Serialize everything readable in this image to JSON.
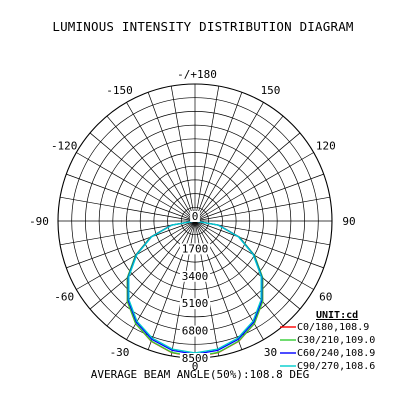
{
  "chart_data": {
    "type": "polar",
    "title": "LUMINOUS INTENSITY DISTRIBUTION DIAGRAM",
    "unit_label": "UNIT:cd",
    "footer": "AVERAGE BEAM ANGLE(50%):108.8 DEG",
    "grid": true,
    "angle_step_deg": 10,
    "r_max": 8500,
    "ring_values": [
      1700,
      3400,
      5100,
      6800,
      8500
    ],
    "ring_labels": [
      "0",
      "1700",
      "3400",
      "5100",
      "6800",
      "8500"
    ],
    "angle_labels": [
      {
        "angle": 180,
        "text": "-/+180"
      },
      {
        "angle": 150,
        "text": "150"
      },
      {
        "angle": -150,
        "text": "-150"
      },
      {
        "angle": 120,
        "text": "120"
      },
      {
        "angle": -120,
        "text": "-120"
      },
      {
        "angle": 90,
        "text": "90"
      },
      {
        "angle": -90,
        "text": "-90"
      },
      {
        "angle": 60,
        "text": "60"
      },
      {
        "angle": -60,
        "text": "-60"
      },
      {
        "angle": 30,
        "text": "30"
      },
      {
        "angle": -30,
        "text": "-30"
      },
      {
        "angle": 0,
        "text": "0"
      }
    ],
    "legend_placement": "bottom-right",
    "series": [
      {
        "name": "C0/180,108.9",
        "color": "#ff0000",
        "angles": [
          -90,
          -80,
          -70,
          -60,
          -50,
          -40,
          -30,
          -20,
          -10,
          0,
          10,
          20,
          30,
          40,
          50,
          60,
          70,
          80,
          90
        ],
        "values": [
          0,
          1480,
          2920,
          4250,
          5470,
          6520,
          7360,
          7940,
          8300,
          8420,
          8300,
          7940,
          7360,
          6520,
          5470,
          4250,
          2920,
          1480,
          0
        ]
      },
      {
        "name": "C30/210,109.0",
        "color": "#33cc33",
        "angles": [
          -90,
          -80,
          -70,
          -60,
          -50,
          -40,
          -30,
          -20,
          -10,
          0,
          10,
          20,
          30,
          40,
          50,
          60,
          70,
          80,
          90
        ],
        "values": [
          0,
          1490,
          2940,
          4270,
          5490,
          6530,
          7360,
          7930,
          8280,
          8400,
          8280,
          7930,
          7360,
          6530,
          5490,
          4270,
          2940,
          1490,
          0
        ]
      },
      {
        "name": "C60/240,108.9",
        "color": "#0000ff",
        "angles": [
          -90,
          -80,
          -70,
          -60,
          -50,
          -40,
          -30,
          -20,
          -10,
          0,
          10,
          20,
          30,
          40,
          50,
          60,
          70,
          80,
          90
        ],
        "values": [
          0,
          1470,
          2890,
          4200,
          5410,
          6440,
          7260,
          7820,
          8150,
          8270,
          8150,
          7820,
          7260,
          6440,
          5410,
          4200,
          2890,
          1470,
          0
        ]
      },
      {
        "name": "C90/270,108.6",
        "color": "#00cccc",
        "angles": [
          -90,
          -80,
          -70,
          -60,
          -50,
          -40,
          -30,
          -20,
          -10,
          0,
          10,
          20,
          30,
          40,
          50,
          60,
          70,
          80,
          90
        ],
        "values": [
          0,
          1450,
          2860,
          4160,
          5360,
          6380,
          7190,
          7740,
          8070,
          8180,
          8070,
          7740,
          7190,
          6380,
          5360,
          4160,
          2860,
          1450,
          0
        ]
      }
    ]
  }
}
